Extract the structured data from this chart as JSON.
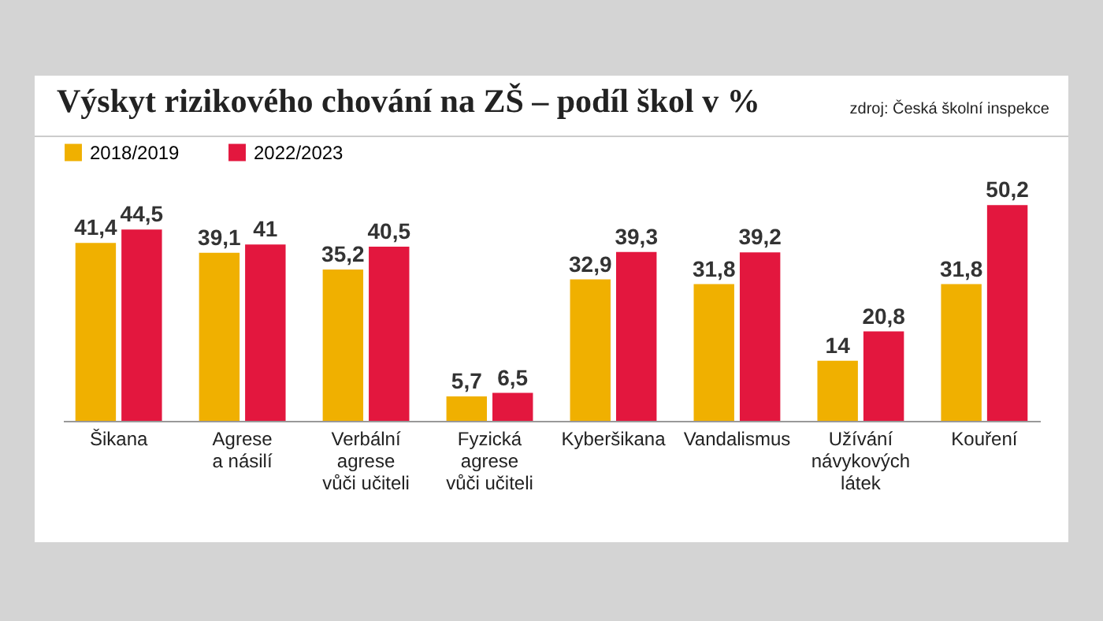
{
  "chart_data": {
    "type": "bar",
    "title": "Výskyt rizikového chování na ZŠ – podíl škol v %",
    "annotations": [
      "zdroj: Česká školní inspekce"
    ],
    "categories": [
      "Šikana",
      "Agrese\na násilí",
      "Verbální\nagrese\nvůči učiteli",
      "Fyzická\nagrese\nvůči učiteli",
      "Kyberšikana",
      "Vandalismus",
      "Užívání\nnávykových\nlátek",
      "Kouření"
    ],
    "series": [
      {
        "name": "2018/2019",
        "color": "#f0b000",
        "values": [
          41.4,
          39.1,
          35.2,
          5.7,
          32.9,
          31.8,
          14,
          31.8
        ],
        "value_labels": [
          "41,4",
          "39,1",
          "35,2",
          "5,7",
          "32,9",
          "31,8",
          "14",
          "31,8"
        ]
      },
      {
        "name": "2022/2023",
        "color": "#e3173e",
        "values": [
          44.5,
          41,
          40.5,
          6.5,
          39.3,
          39.2,
          20.8,
          50.2
        ],
        "value_labels": [
          "44,5",
          "41",
          "40,5",
          "6,5",
          "39,3",
          "39,2",
          "20,8",
          "50,2"
        ]
      }
    ],
    "legend": "top left"
  }
}
